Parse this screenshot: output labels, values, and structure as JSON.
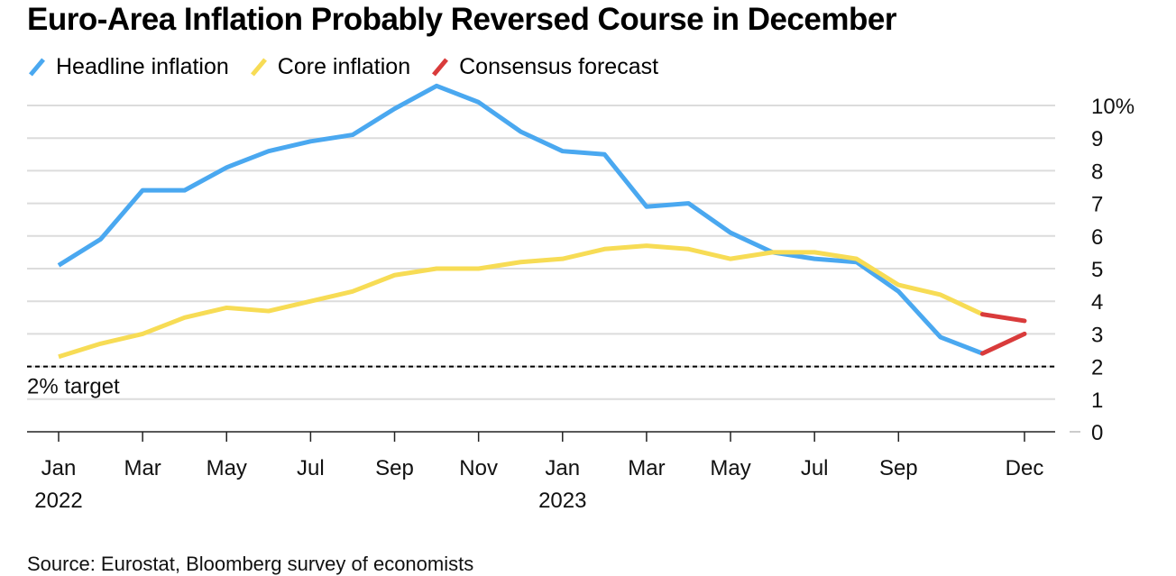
{
  "chart_data": {
    "type": "line",
    "title": "Euro-Area Inflation Probably Reversed Course in December",
    "source": "Source: Eurostat, Bloomberg survey of economists",
    "x": [
      "2022-01",
      "2022-02",
      "2022-03",
      "2022-04",
      "2022-05",
      "2022-06",
      "2022-07",
      "2022-08",
      "2022-09",
      "2022-10",
      "2022-11",
      "2022-12",
      "2023-01",
      "2023-02",
      "2023-03",
      "2023-04",
      "2023-05",
      "2023-06",
      "2023-07",
      "2023-08",
      "2023-09",
      "2023-10",
      "2023-11",
      "2023-12"
    ],
    "x_ticks": [
      {
        "month": "2022-01",
        "label": "Jan",
        "year": "2022"
      },
      {
        "month": "2022-03",
        "label": "Mar"
      },
      {
        "month": "2022-05",
        "label": "May"
      },
      {
        "month": "2022-07",
        "label": "Jul"
      },
      {
        "month": "2022-09",
        "label": "Sep"
      },
      {
        "month": "2022-11",
        "label": "Nov"
      },
      {
        "month": "2023-01",
        "label": "Jan",
        "year": "2023"
      },
      {
        "month": "2023-03",
        "label": "Mar"
      },
      {
        "month": "2023-05",
        "label": "May"
      },
      {
        "month": "2023-07",
        "label": "Jul"
      },
      {
        "month": "2023-09",
        "label": "Sep"
      },
      {
        "month": "2023-12",
        "label": "Dec"
      }
    ],
    "y_ticks": [
      "0",
      "1",
      "2",
      "3",
      "4",
      "5",
      "6",
      "7",
      "8",
      "9",
      "10%"
    ],
    "ylim": [
      0,
      10
    ],
    "grid": true,
    "legend_position": "top-left",
    "series": [
      {
        "name": "Headline inflation",
        "color": "#4aa8f0",
        "values": [
          5.1,
          5.9,
          7.4,
          7.4,
          8.1,
          8.6,
          8.9,
          9.1,
          9.9,
          10.6,
          10.1,
          9.2,
          8.6,
          8.5,
          6.9,
          7.0,
          6.1,
          5.5,
          5.3,
          5.2,
          4.3,
          2.9,
          2.4,
          null
        ]
      },
      {
        "name": "Core inflation",
        "color": "#f7dc55",
        "values": [
          2.3,
          2.7,
          3.0,
          3.5,
          3.8,
          3.7,
          4.0,
          4.3,
          4.8,
          5.0,
          5.0,
          5.2,
          5.3,
          5.6,
          5.7,
          5.6,
          5.3,
          5.5,
          5.5,
          5.3,
          4.5,
          4.2,
          3.6,
          null
        ]
      },
      {
        "name": "Consensus forecast",
        "color": "#d93b3b",
        "segments": [
          {
            "x": [
              "2023-11",
              "2023-12"
            ],
            "values": [
              2.4,
              3.0
            ]
          },
          {
            "x": [
              "2023-11",
              "2023-12"
            ],
            "values": [
              3.6,
              3.4
            ]
          }
        ]
      }
    ],
    "annotations": [
      {
        "label": "2% target",
        "y": 2,
        "style": "dashed"
      }
    ]
  }
}
